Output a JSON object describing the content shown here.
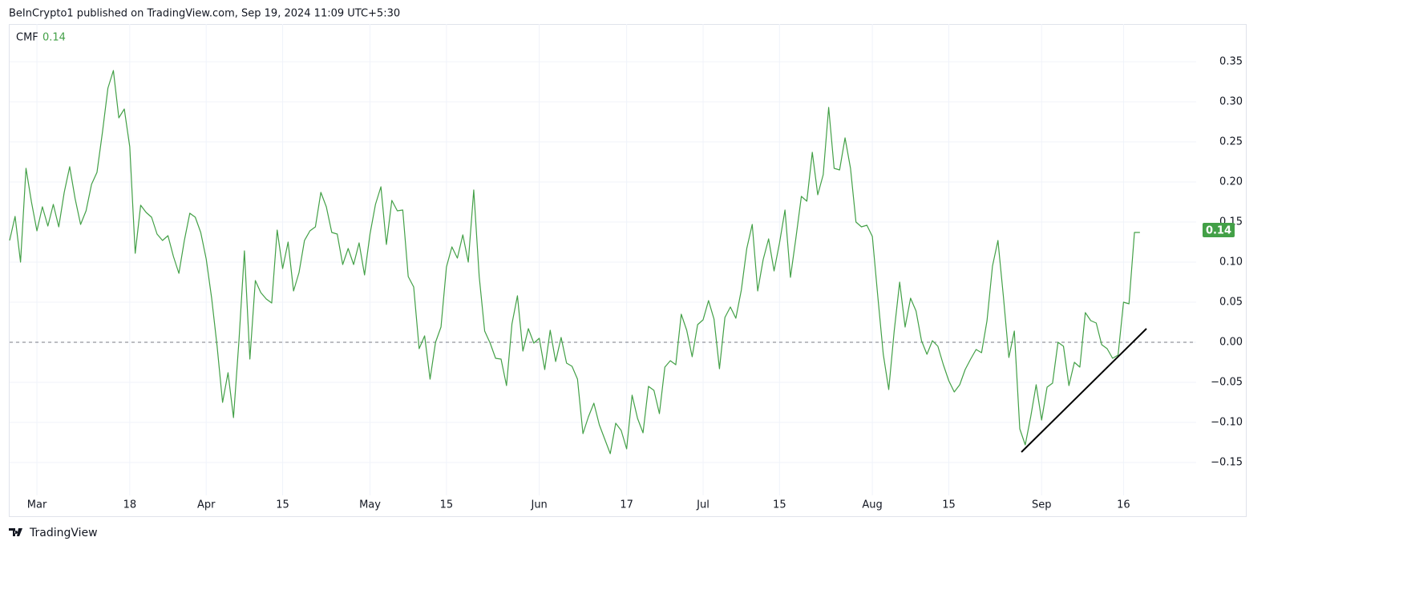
{
  "header": "BeInCrypto1 published on TradingView.com, Sep 19, 2024 11:09 UTC+5:30",
  "footer": "TradingView",
  "chart_data": {
    "type": "line",
    "indicator": {
      "name": "CMF",
      "value": 0.14
    },
    "color": "#43a047",
    "values": [
      0.127,
      0.157,
      0.1,
      0.217,
      0.175,
      0.139,
      0.169,
      0.145,
      0.172,
      0.144,
      0.187,
      0.219,
      0.179,
      0.147,
      0.164,
      0.197,
      0.212,
      0.262,
      0.317,
      0.339,
      0.28,
      0.291,
      0.244,
      0.111,
      0.171,
      0.162,
      0.156,
      0.135,
      0.127,
      0.133,
      0.107,
      0.086,
      0.127,
      0.161,
      0.156,
      0.137,
      0.104,
      0.055,
      -0.005,
      -0.075,
      -0.038,
      -0.094,
      0.002,
      0.114,
      -0.021,
      0.077,
      0.062,
      0.054,
      0.049,
      0.14,
      0.092,
      0.125,
      0.064,
      0.087,
      0.127,
      0.139,
      0.144,
      0.187,
      0.169,
      0.137,
      0.135,
      0.097,
      0.117,
      0.097,
      0.124,
      0.084,
      0.135,
      0.172,
      0.194,
      0.122,
      0.177,
      0.164,
      0.165,
      0.082,
      0.069,
      -0.008,
      0.008,
      -0.046,
      0.0,
      0.019,
      0.094,
      0.119,
      0.105,
      0.134,
      0.1,
      0.19,
      0.082,
      0.014,
      -0.001,
      -0.02,
      -0.021,
      -0.054,
      0.023,
      0.058,
      -0.011,
      0.017,
      -0.001,
      0.005,
      -0.034,
      0.015,
      -0.024,
      0.006,
      -0.026,
      -0.03,
      -0.046,
      -0.114,
      -0.093,
      -0.076,
      -0.103,
      -0.121,
      -0.139,
      -0.101,
      -0.11,
      -0.133,
      -0.066,
      -0.095,
      -0.113,
      -0.055,
      -0.06,
      -0.089,
      -0.031,
      -0.023,
      -0.028,
      0.035,
      0.015,
      -0.018,
      0.022,
      0.028,
      0.052,
      0.029,
      -0.033,
      0.031,
      0.044,
      0.03,
      0.065,
      0.117,
      0.147,
      0.064,
      0.103,
      0.129,
      0.089,
      0.124,
      0.165,
      0.081,
      0.13,
      0.182,
      0.176,
      0.237,
      0.184,
      0.209,
      0.293,
      0.217,
      0.215,
      0.255,
      0.217,
      0.15,
      0.144,
      0.146,
      0.132,
      0.057,
      -0.015,
      -0.059,
      0.014,
      0.075,
      0.019,
      0.055,
      0.039,
      0.002,
      -0.015,
      0.002,
      -0.005,
      -0.028,
      -0.048,
      -0.062,
      -0.053,
      -0.034,
      -0.021,
      -0.009,
      -0.013,
      0.027,
      0.095,
      0.127,
      0.057,
      -0.019,
      0.014,
      -0.108,
      -0.128,
      -0.093,
      -0.053,
      -0.097,
      -0.056,
      -0.051,
      0.0,
      -0.005,
      -0.054,
      -0.025,
      -0.031,
      0.037,
      0.027,
      0.024,
      -0.003,
      -0.008,
      -0.02,
      -0.016,
      0.05,
      0.048,
      0.137,
      0.137
    ],
    "xlim": [
      0,
      217.3
    ],
    "xticks": [
      {
        "value": 5,
        "label": "Mar"
      },
      {
        "value": 22,
        "label": "18"
      },
      {
        "value": 36,
        "label": "Apr"
      },
      {
        "value": 50,
        "label": "15"
      },
      {
        "value": 66,
        "label": "May"
      },
      {
        "value": 80,
        "label": "15"
      },
      {
        "value": 97,
        "label": "Jun"
      },
      {
        "value": 113,
        "label": "17"
      },
      {
        "value": 127,
        "label": "Jul"
      },
      {
        "value": 141,
        "label": "15"
      },
      {
        "value": 158,
        "label": "Aug"
      },
      {
        "value": 172,
        "label": "15"
      },
      {
        "value": 189,
        "label": "Sep"
      },
      {
        "value": 204,
        "label": "16"
      }
    ],
    "ylim": [
      -0.191,
      0.397
    ],
    "yticks": [
      {
        "value": -0.15,
        "label": "−0.15"
      },
      {
        "value": -0.1,
        "label": "−0.10"
      },
      {
        "value": -0.05,
        "label": "−0.05"
      },
      {
        "value": 0,
        "label": "0.00"
      },
      0.05,
      {
        "value": 0.1,
        "label": "0.10"
      },
      0.15,
      {
        "value": 0.2,
        "label": "0.20"
      },
      0.25,
      {
        "value": 0.3,
        "label": "0.30"
      },
      0.35
    ],
    "grid": true,
    "reference_line": 0,
    "trendline": {
      "x": [
        185.3,
        208.2
      ],
      "values": [
        -0.137,
        0.017
      ],
      "color": "#000000"
    }
  }
}
